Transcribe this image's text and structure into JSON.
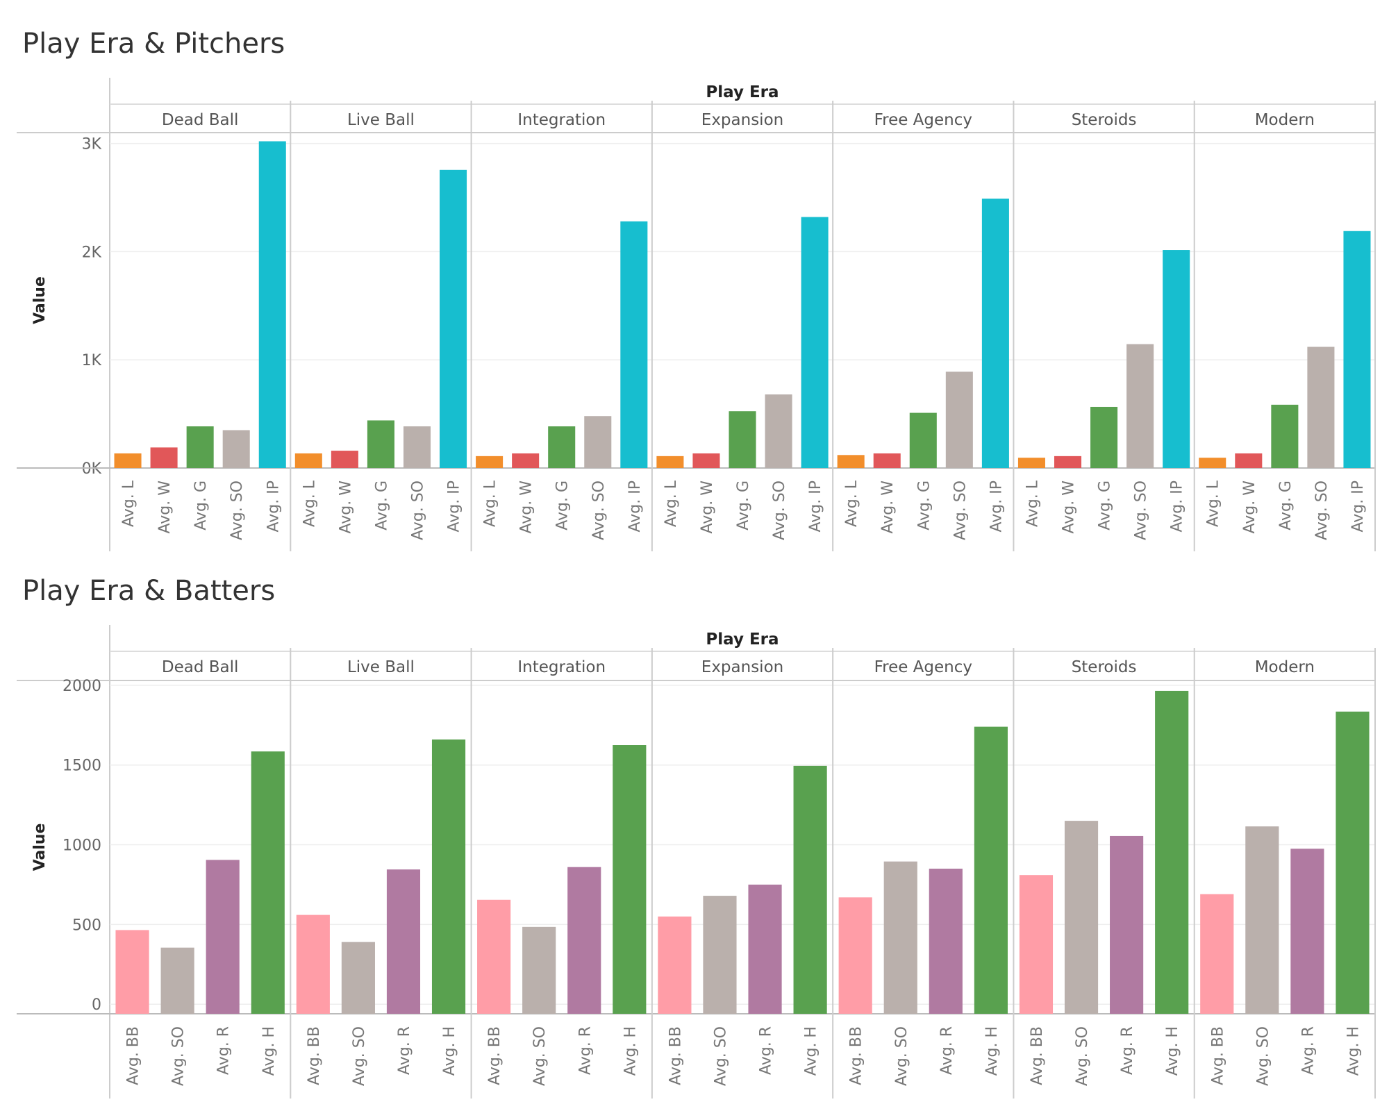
{
  "chart_data": [
    {
      "type": "bar",
      "title": "Play Era & Pitchers",
      "facet_title": "Play Era",
      "ylabel": "Value",
      "ylim": [
        0,
        3100
      ],
      "yticks": [
        0,
        1000,
        2000,
        3000
      ],
      "ytick_labels": [
        "0K",
        "1K",
        "2K",
        "3K"
      ],
      "categories": [
        "Avg. L",
        "Avg. W",
        "Avg. G",
        "Avg. SO",
        "Avg. IP"
      ],
      "colors": [
        "#f28e2b",
        "#e15759",
        "#59a14f",
        "#bab0ac",
        "#17becf"
      ],
      "grid": true,
      "panels": [
        {
          "era": "Dead Ball",
          "values": [
            135,
            190,
            385,
            350,
            3020
          ]
        },
        {
          "era": "Live Ball",
          "values": [
            135,
            160,
            440,
            385,
            2755
          ]
        },
        {
          "era": "Integration",
          "values": [
            110,
            135,
            385,
            480,
            2280
          ]
        },
        {
          "era": "Expansion",
          "values": [
            110,
            135,
            525,
            680,
            2320
          ]
        },
        {
          "era": "Free Agency",
          "values": [
            120,
            135,
            510,
            890,
            2490
          ]
        },
        {
          "era": "Steroids",
          "values": [
            95,
            110,
            565,
            1145,
            2015
          ]
        },
        {
          "era": "Modern",
          "values": [
            95,
            135,
            585,
            1120,
            2190
          ]
        }
      ]
    },
    {
      "type": "bar",
      "title": "Play Era & Batters",
      "facet_title": "Play Era",
      "ylabel": "Value",
      "ylim": [
        -60,
        2030
      ],
      "yticks": [
        0,
        500,
        1000,
        1500,
        2000
      ],
      "ytick_labels": [
        "0",
        "500",
        "1000",
        "1500",
        "2000"
      ],
      "categories": [
        "Avg. BB",
        "Avg. SO",
        "Avg. R",
        "Avg. H"
      ],
      "colors": [
        "#ff9da7",
        "#bab0ac",
        "#b07aa1",
        "#59a14f"
      ],
      "grid": true,
      "panels": [
        {
          "era": "Dead Ball",
          "values": [
            465,
            355,
            905,
            1585
          ]
        },
        {
          "era": "Live Ball",
          "values": [
            560,
            390,
            845,
            1660
          ]
        },
        {
          "era": "Integration",
          "values": [
            655,
            485,
            860,
            1625
          ]
        },
        {
          "era": "Expansion",
          "values": [
            550,
            680,
            750,
            1495
          ]
        },
        {
          "era": "Free Agency",
          "values": [
            670,
            895,
            850,
            1740
          ]
        },
        {
          "era": "Steroids",
          "values": [
            810,
            1150,
            1055,
            1965
          ]
        },
        {
          "era": "Modern",
          "values": [
            690,
            1115,
            975,
            1835
          ]
        }
      ]
    }
  ]
}
